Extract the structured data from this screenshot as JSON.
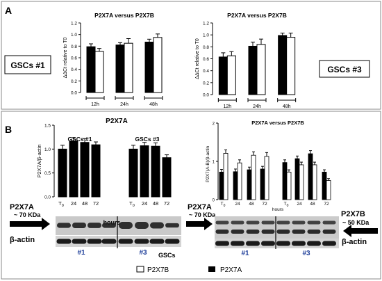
{
  "panel_a": {
    "letter": "A",
    "label_left": "GSCs #1",
    "label_right": "GSCs #3"
  },
  "panel_b": {
    "letter": "B",
    "wb_left": {
      "protein_label": "P2X7A",
      "kda_label": "~ 70 KDa",
      "loading_label": "β-actin",
      "hours_label": "hours",
      "cell_label": "GSCs",
      "group_1": "#1",
      "group_3": "#3"
    },
    "wb_right": {
      "protein_a_label": "P2X7A",
      "kda_a_label": "~ 70 KDa",
      "protein_b_label": "P2X7B",
      "kda_b_label": "~ 50 KDa",
      "loading_label": "β-actin",
      "group_1": "#1",
      "group_3": "#3"
    }
  },
  "legend": {
    "items": [
      {
        "name": "P2X7B",
        "color": "#ffffff"
      },
      {
        "name": "P2X7A",
        "color": "#000000"
      }
    ]
  },
  "colors": {
    "bar_a": "#000000",
    "bar_b": "#ffffff",
    "stroke": "#000000",
    "panel_border": "#888888"
  },
  "chart_data": [
    {
      "id": "a1",
      "type": "bar",
      "title": "P2X7A versus P2X7B",
      "ylabel": "ΔΔCt relative to T0",
      "categories": [
        "12h",
        "24h",
        "48h"
      ],
      "ylim": [
        0,
        1.2
      ],
      "yticks": [
        "0.0",
        "0.2",
        "0.4",
        "0.6",
        "0.8",
        "1.0",
        "1.2"
      ],
      "series": [
        {
          "name": "P2X7A",
          "values": [
            0.79,
            0.82,
            0.87
          ],
          "errors": [
            0.05,
            0.04,
            0.05
          ]
        },
        {
          "name": "P2X7B",
          "values": [
            0.71,
            0.85,
            0.95
          ],
          "errors": [
            0.05,
            0.08,
            0.06
          ]
        }
      ]
    },
    {
      "id": "a3",
      "type": "bar",
      "title": "P2X7A versus P2X7B",
      "ylabel": "ΔΔCt relative to T0",
      "categories": [
        "12h",
        "24h",
        "48h"
      ],
      "ylim": [
        0,
        1.2
      ],
      "yticks": [
        "0.0",
        "0.2",
        "0.4",
        "0.6",
        "0.8",
        "1.0",
        "1.2"
      ],
      "series": [
        {
          "name": "P2X7A",
          "values": [
            0.63,
            0.81,
            0.99
          ],
          "errors": [
            0.07,
            0.07,
            0.04
          ]
        },
        {
          "name": "P2X7B",
          "values": [
            0.65,
            0.84,
            0.96
          ],
          "errors": [
            0.07,
            0.09,
            0.07
          ]
        }
      ]
    },
    {
      "id": "b1",
      "type": "bar",
      "title": "P2X7A",
      "ylabel": "P2X7A/β-actin",
      "group_labels": [
        "GSCs #1",
        "GSCs #3"
      ],
      "categories": [
        "T0",
        "24",
        "48",
        "72",
        "T0",
        "24",
        "48",
        "72"
      ],
      "xlabel": "hours",
      "ylim": [
        0,
        1.5
      ],
      "yticks": [
        "0.0",
        "0.5",
        "1.0",
        "1.5"
      ],
      "series": [
        {
          "name": "P2X7A",
          "values": [
            1.0,
            1.17,
            1.14,
            1.09,
            1.0,
            1.07,
            1.06,
            0.82
          ],
          "errors": [
            0.08,
            0.07,
            0.08,
            0.06,
            0.08,
            0.07,
            0.07,
            0.06
          ]
        }
      ]
    },
    {
      "id": "b2",
      "type": "bar",
      "title": "P2X7A versus P2X7B",
      "ylabel": "P2X7(A-B)/β-actin",
      "categories": [
        "T0",
        "24",
        "48",
        "72",
        "T0",
        "24",
        "48",
        "72"
      ],
      "xlabel": "hours",
      "ylim": [
        0,
        2
      ],
      "yticks": [
        "0",
        "1",
        "2"
      ],
      "series": [
        {
          "name": "P2X7A",
          "values": [
            0.72,
            0.73,
            0.78,
            0.8,
            0.97,
            1.07,
            1.2,
            0.72
          ],
          "errors": [
            0.07,
            0.07,
            0.07,
            0.07,
            0.07,
            0.07,
            0.08,
            0.06
          ]
        },
        {
          "name": "P2X7B",
          "values": [
            1.21,
            0.96,
            1.16,
            1.13,
            0.72,
            0.91,
            0.91,
            0.5
          ],
          "errors": [
            0.09,
            0.08,
            0.09,
            0.1,
            0.06,
            0.07,
            0.07,
            0.05
          ]
        }
      ]
    }
  ]
}
